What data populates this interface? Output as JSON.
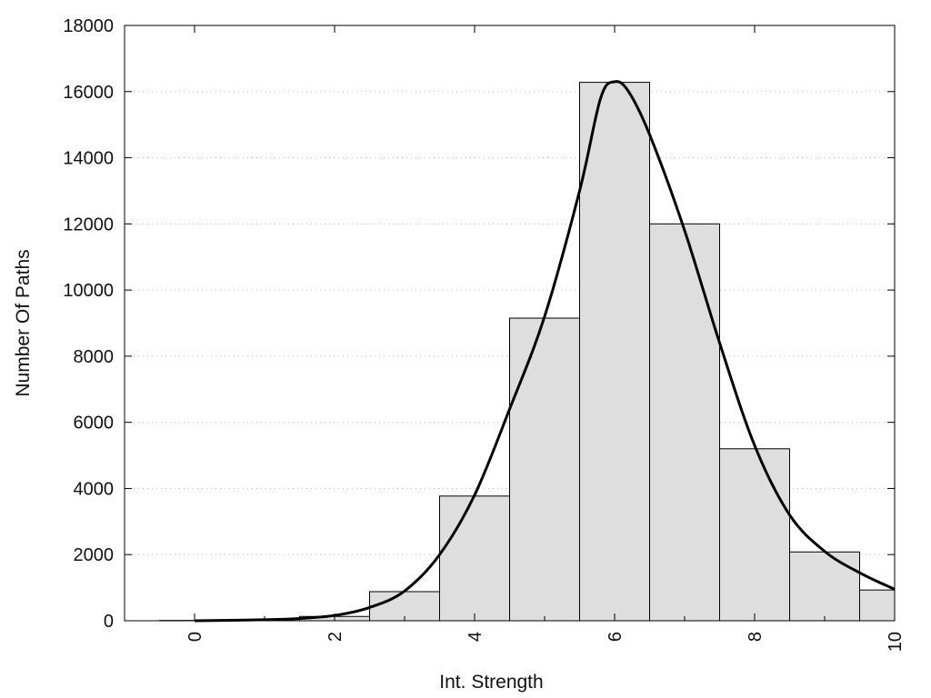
{
  "chart_data": {
    "type": "bar",
    "subtype": "histogram with smoothed density curve",
    "xlabel": "Int. Strength",
    "ylabel": "Number Of Paths",
    "xlim": [
      -1,
      10
    ],
    "ylim": [
      0,
      18000
    ],
    "xticks": [
      "0",
      "2",
      "4",
      "6",
      "8",
      "10"
    ],
    "yticks": [
      "0",
      "2000",
      "4000",
      "6000",
      "8000",
      "10000",
      "12000",
      "14000",
      "16000",
      "18000"
    ],
    "grid": "horizontal dotted",
    "bins": [
      {
        "x": 0,
        "value": 10
      },
      {
        "x": 1,
        "value": 40
      },
      {
        "x": 2,
        "value": 130
      },
      {
        "x": 3,
        "value": 880
      },
      {
        "x": 4,
        "value": 3770
      },
      {
        "x": 5,
        "value": 9150
      },
      {
        "x": 6,
        "value": 16280
      },
      {
        "x": 7,
        "value": 12000
      },
      {
        "x": 8,
        "value": 5200
      },
      {
        "x": 9,
        "value": 2080
      },
      {
        "x": 10,
        "value": 930
      }
    ],
    "curve": {
      "x": [
        0,
        1,
        1.5,
        2,
        2.5,
        3,
        3.5,
        4,
        4.5,
        5,
        5.5,
        5.8,
        6,
        6.2,
        6.5,
        7,
        7.5,
        8,
        8.5,
        9,
        9.5,
        10
      ],
      "y": [
        0,
        30,
        70,
        160,
        400,
        900,
        2000,
        3800,
        6400,
        9200,
        13000,
        15800,
        16300,
        16000,
        14700,
        11800,
        8400,
        5300,
        3200,
        2100,
        1450,
        950
      ]
    },
    "colors": {
      "bar_fill": "#dedede",
      "bar_stroke": "#000000",
      "curve": "#000000",
      "grid": "#bbbbbb"
    }
  }
}
